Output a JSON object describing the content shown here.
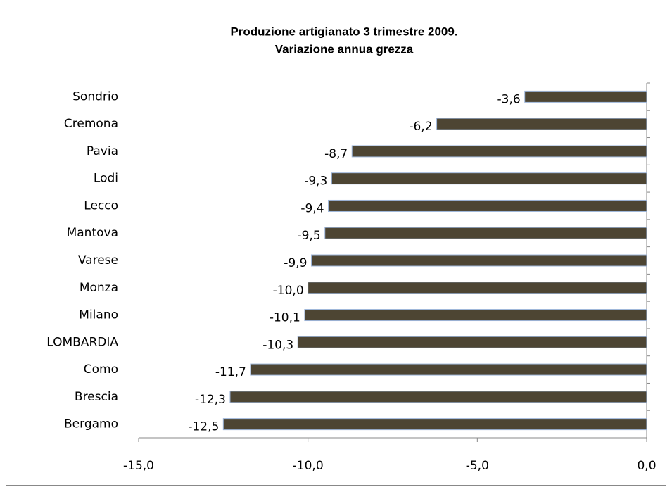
{
  "chart_data": {
    "type": "barh",
    "title": [
      "Produzione artigianato 3   trimestre 2009.",
      "Variazione annua grezza"
    ],
    "categories": [
      "Sondrio",
      "Cremona",
      "Pavia",
      "Lodi",
      "Lecco",
      "Mantova",
      "Varese",
      "Monza",
      "Milano",
      "LOMBARDIA",
      "Como",
      "Brescia",
      "Bergamo"
    ],
    "values": [
      -3.6,
      -6.2,
      -8.7,
      -9.3,
      -9.4,
      -9.5,
      -9.9,
      -10.0,
      -10.1,
      -10.3,
      -11.7,
      -12.3,
      -12.5
    ],
    "value_labels": [
      "-3,6",
      "-6,2",
      "-8,7",
      "-9,3",
      "-9,4",
      "-9,5",
      "-9,9",
      "-10,0",
      "-10,1",
      "-10,3",
      "-11,7",
      "-12,3",
      "-12,5"
    ],
    "color": "#4d4533",
    "xlim": [
      -15,
      0
    ],
    "xticks": [
      {
        "value": -15,
        "label": "-15,0"
      },
      {
        "value": -10,
        "label": "-10,0"
      },
      {
        "value": -5,
        "label": "-5,0"
      },
      {
        "value": 0,
        "label": "0,0"
      }
    ]
  }
}
